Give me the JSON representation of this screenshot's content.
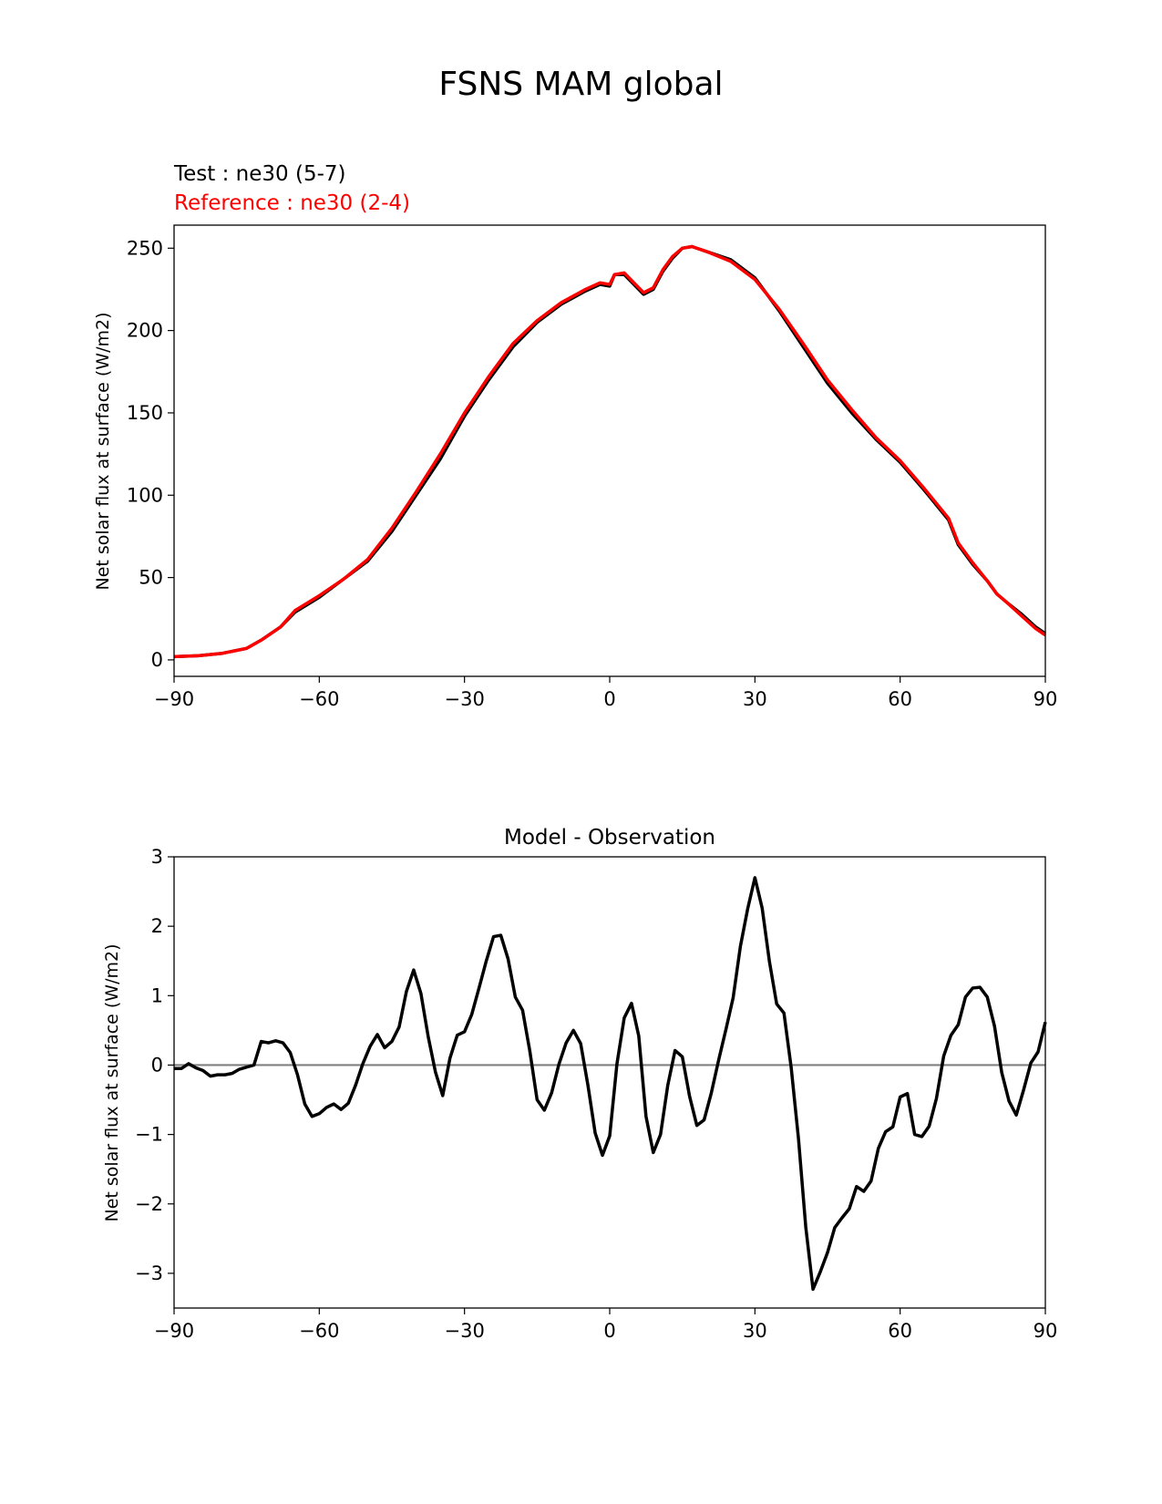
{
  "figure": {
    "title": "FSNS MAM global"
  },
  "chart_data": [
    {
      "type": "line",
      "title": "",
      "legend_text": [
        {
          "text": "Test : ne30 (5-7)",
          "color": "#000000"
        },
        {
          "text": "Reference : ne30 (2-4)",
          "color": "#ff0000"
        }
      ],
      "xlabel": "",
      "ylabel": "Net solar flux at surface (W/m2)",
      "xlim": [
        -90,
        90
      ],
      "ylim": [
        -10,
        264
      ],
      "xticks": [
        -90,
        -60,
        -30,
        0,
        30,
        60,
        90
      ],
      "xtick_labels": [
        "−90",
        "−60",
        "−30",
        "0",
        "30",
        "60",
        "90"
      ],
      "yticks": [
        0,
        50,
        100,
        150,
        200,
        250
      ],
      "ytick_labels": [
        "0",
        "50",
        "100",
        "150",
        "200",
        "250"
      ],
      "series": [
        {
          "name": "Test : ne30 (5-7)",
          "color": "#000000",
          "points": [
            [
              -90,
              2
            ],
            [
              -85,
              2.5
            ],
            [
              -80,
              4
            ],
            [
              -75,
              7
            ],
            [
              -72,
              12
            ],
            [
              -68,
              20
            ],
            [
              -65,
              29
            ],
            [
              -60,
              38
            ],
            [
              -55,
              49
            ],
            [
              -50,
              60
            ],
            [
              -45,
              78
            ],
            [
              -40,
              100
            ],
            [
              -35,
              122
            ],
            [
              -30,
              148
            ],
            [
              -25,
              170
            ],
            [
              -20,
              190
            ],
            [
              -15,
              205
            ],
            [
              -10,
              216
            ],
            [
              -5,
              224
            ],
            [
              0,
              227
            ],
            [
              -2,
              228
            ],
            [
              1,
              234
            ],
            [
              3,
              234
            ],
            [
              5,
              228
            ],
            [
              7,
              222
            ],
            [
              9,
              225
            ],
            [
              11,
              236
            ],
            [
              13,
              244
            ],
            [
              15,
              250
            ],
            [
              17,
              251
            ],
            [
              20,
              248
            ],
            [
              25,
              243
            ],
            [
              30,
              232
            ],
            [
              35,
              212
            ],
            [
              40,
              190
            ],
            [
              45,
              168
            ],
            [
              50,
              150
            ],
            [
              55,
              134
            ],
            [
              60,
              120
            ],
            [
              65,
              103
            ],
            [
              70,
              85
            ],
            [
              72,
              70
            ],
            [
              75,
              58
            ],
            [
              78,
              48
            ],
            [
              80,
              40
            ],
            [
              82,
              35
            ],
            [
              85,
              28
            ],
            [
              88,
              20
            ],
            [
              90,
              16
            ]
          ]
        },
        {
          "name": "Reference : ne30 (2-4)",
          "color": "#ff0000",
          "points": [
            [
              -90,
              2
            ],
            [
              -85,
              2.5
            ],
            [
              -80,
              4
            ],
            [
              -75,
              7
            ],
            [
              -72,
              12
            ],
            [
              -68,
              20
            ],
            [
              -65,
              30
            ],
            [
              -60,
              39
            ],
            [
              -55,
              49
            ],
            [
              -50,
              61
            ],
            [
              -45,
              80
            ],
            [
              -40,
              102
            ],
            [
              -35,
              125
            ],
            [
              -30,
              150
            ],
            [
              -25,
              172
            ],
            [
              -20,
              192
            ],
            [
              -15,
              206
            ],
            [
              -10,
              217
            ],
            [
              -5,
              225
            ],
            [
              0,
              228
            ],
            [
              -2,
              229
            ],
            [
              1,
              234
            ],
            [
              3,
              235
            ],
            [
              5,
              229
            ],
            [
              7,
              223
            ],
            [
              9,
              226
            ],
            [
              11,
              237
            ],
            [
              13,
              245
            ],
            [
              15,
              250
            ],
            [
              17,
              251
            ],
            [
              20,
              248
            ],
            [
              25,
              242
            ],
            [
              30,
              231
            ],
            [
              35,
              213
            ],
            [
              40,
              192
            ],
            [
              45,
              170
            ],
            [
              50,
              152
            ],
            [
              55,
              135
            ],
            [
              60,
              121
            ],
            [
              65,
              104
            ],
            [
              70,
              86
            ],
            [
              72,
              71
            ],
            [
              75,
              59
            ],
            [
              78,
              48
            ],
            [
              80,
              40
            ],
            [
              82,
              35
            ],
            [
              85,
              27
            ],
            [
              88,
              19
            ],
            [
              90,
              15
            ]
          ]
        }
      ]
    },
    {
      "type": "line",
      "title": "Model - Observation",
      "xlabel": "",
      "ylabel": "Net solar flux at surface (W/m2)",
      "xlim": [
        -90,
        90
      ],
      "ylim": [
        -3.5,
        3.0
      ],
      "xticks": [
        -90,
        -60,
        -30,
        0,
        30,
        60,
        90
      ],
      "xtick_labels": [
        "−90",
        "−60",
        "−30",
        "0",
        "30",
        "60",
        "90"
      ],
      "yticks": [
        -3,
        -2,
        -1,
        0,
        1,
        2,
        3
      ],
      "ytick_labels": [
        "−3",
        "−2",
        "−1",
        "0",
        "1",
        "2",
        "3"
      ],
      "zero_line": {
        "y": 0,
        "color": "#808080"
      },
      "series": [
        {
          "color": "#000000",
          "points": [
            [
              -90,
              -0.05
            ],
            [
              -88.5,
              -0.05
            ],
            [
              -87,
              0.02
            ],
            [
              -85.5,
              -0.04
            ],
            [
              -84,
              -0.08
            ],
            [
              -82.5,
              -0.16
            ],
            [
              -81,
              -0.14
            ],
            [
              -79.5,
              -0.14
            ],
            [
              -78,
              -0.12
            ],
            [
              -76.5,
              -0.06
            ],
            [
              -75,
              -0.03
            ],
            [
              -73.5,
              0
            ],
            [
              -72,
              0.34
            ],
            [
              -70.5,
              0.32
            ],
            [
              -69,
              0.35
            ],
            [
              -67.5,
              0.32
            ],
            [
              -66,
              0.18
            ],
            [
              -64.5,
              -0.14
            ],
            [
              -63,
              -0.56
            ],
            [
              -61.5,
              -0.74
            ],
            [
              -60,
              -0.7
            ],
            [
              -58.5,
              -0.61
            ],
            [
              -57,
              -0.56
            ],
            [
              -55.5,
              -0.64
            ],
            [
              -54,
              -0.55
            ],
            [
              -52.5,
              -0.29
            ],
            [
              -51,
              0.02
            ],
            [
              -49.5,
              0.27
            ],
            [
              -48,
              0.44
            ],
            [
              -46.5,
              0.25
            ],
            [
              -45,
              0.34
            ],
            [
              -43.5,
              0.55
            ],
            [
              -42,
              1.06
            ],
            [
              -40.5,
              1.37
            ],
            [
              -39,
              1.03
            ],
            [
              -37.5,
              0.41
            ],
            [
              -36,
              -0.1
            ],
            [
              -34.5,
              -0.44
            ],
            [
              -33,
              0.1
            ],
            [
              -31.5,
              0.43
            ],
            [
              -30,
              0.48
            ],
            [
              -28.5,
              0.73
            ],
            [
              -27,
              1.11
            ],
            [
              -25.5,
              1.5
            ],
            [
              -24,
              1.85
            ],
            [
              -22.5,
              1.87
            ],
            [
              -21,
              1.53
            ],
            [
              -19.5,
              0.98
            ],
            [
              -18,
              0.79
            ],
            [
              -16.5,
              0.2
            ],
            [
              -15,
              -0.5
            ],
            [
              -13.5,
              -0.65
            ],
            [
              -12,
              -0.4
            ],
            [
              -10.5,
              0.01
            ],
            [
              -9,
              0.32
            ],
            [
              -7.5,
              0.5
            ],
            [
              -6,
              0.31
            ],
            [
              -4.5,
              -0.29
            ],
            [
              -3,
              -0.98
            ],
            [
              -1.5,
              -1.3
            ],
            [
              0,
              -1.02
            ],
            [
              1.5,
              0.02
            ],
            [
              3,
              0.68
            ],
            [
              4.5,
              0.89
            ],
            [
              6,
              0.42
            ],
            [
              7.5,
              -0.74
            ],
            [
              9,
              -1.26
            ],
            [
              10.5,
              -1.0
            ],
            [
              12,
              -0.29
            ],
            [
              13.5,
              0.21
            ],
            [
              15,
              0.12
            ],
            [
              16.5,
              -0.45
            ],
            [
              18,
              -0.87
            ],
            [
              19.5,
              -0.79
            ],
            [
              21,
              -0.4
            ],
            [
              22.5,
              0.07
            ],
            [
              24,
              0.51
            ],
            [
              25.5,
              0.97
            ],
            [
              27,
              1.71
            ],
            [
              28.5,
              2.25
            ],
            [
              30,
              2.7
            ],
            [
              31.5,
              2.26
            ],
            [
              33,
              1.49
            ],
            [
              34.5,
              0.88
            ],
            [
              36,
              0.75
            ],
            [
              37.5,
              -0.04
            ],
            [
              39,
              -1.06
            ],
            [
              40.5,
              -2.33
            ],
            [
              42,
              -3.23
            ],
            [
              43.5,
              -2.98
            ],
            [
              45,
              -2.7
            ],
            [
              46.5,
              -2.34
            ],
            [
              48,
              -2.2
            ],
            [
              49.5,
              -2.07
            ],
            [
              51,
              -1.75
            ],
            [
              52.5,
              -1.82
            ],
            [
              54,
              -1.67
            ],
            [
              55.5,
              -1.2
            ],
            [
              57,
              -0.96
            ],
            [
              58.5,
              -0.89
            ],
            [
              60,
              -0.46
            ],
            [
              61.5,
              -0.41
            ],
            [
              63,
              -1.0
            ],
            [
              64.5,
              -1.03
            ],
            [
              66,
              -0.88
            ],
            [
              67.5,
              -0.48
            ],
            [
              69,
              0.13
            ],
            [
              70.5,
              0.43
            ],
            [
              72,
              0.58
            ],
            [
              73.5,
              0.98
            ],
            [
              75,
              1.11
            ],
            [
              76.5,
              1.12
            ],
            [
              78,
              0.98
            ],
            [
              79.5,
              0.56
            ],
            [
              81,
              -0.11
            ],
            [
              82.5,
              -0.52
            ],
            [
              84,
              -0.72
            ],
            [
              85.5,
              -0.36
            ],
            [
              87,
              0.03
            ],
            [
              88.5,
              0.19
            ],
            [
              90,
              0.62
            ]
          ]
        }
      ]
    }
  ]
}
